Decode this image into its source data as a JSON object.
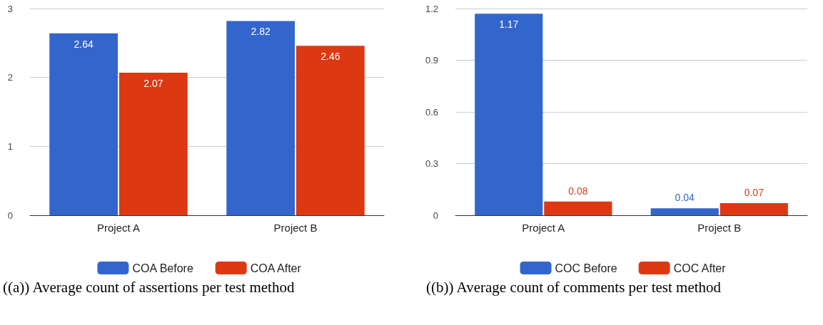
{
  "chart_data": [
    {
      "type": "bar",
      "title": "((a)) Average count of assertions per test method",
      "categories": [
        "Project A",
        "Project B"
      ],
      "series": [
        {
          "name": "COA Before",
          "color": "#3366cc",
          "values": [
            2.64,
            2.82
          ]
        },
        {
          "name": "COA After",
          "color": "#dc3912",
          "values": [
            2.07,
            2.46
          ]
        }
      ],
      "ylim": [
        0,
        3
      ],
      "yticks": [
        0,
        1,
        2,
        3
      ],
      "grid": "y",
      "legend": "bottom",
      "data_labels": true
    },
    {
      "type": "bar",
      "title": "((b)) Average count of comments per test method",
      "categories": [
        "Project A",
        "Project B"
      ],
      "series": [
        {
          "name": "COC Before",
          "color": "#3366cc",
          "values": [
            1.17,
            0.04
          ]
        },
        {
          "name": "COC After",
          "color": "#dc3912",
          "values": [
            0.08,
            0.07
          ]
        }
      ],
      "ylim": [
        0,
        1.2
      ],
      "yticks": [
        0,
        0.3,
        0.6,
        0.9,
        1.2
      ],
      "grid": "y",
      "legend": "bottom",
      "data_labels": true
    }
  ]
}
